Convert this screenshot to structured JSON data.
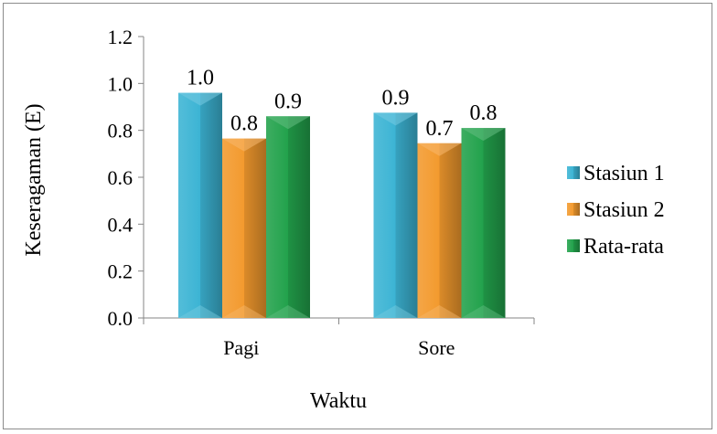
{
  "chart_data": {
    "type": "bar",
    "title": "",
    "xlabel": "Waktu",
    "ylabel": "Keseragaman (E)",
    "categories": [
      "Pagi",
      "Sore"
    ],
    "ylim": [
      0,
      1.2
    ],
    "yticks": [
      "0.0",
      "0.2",
      "0.4",
      "0.6",
      "0.8",
      "1.0",
      "1.2"
    ],
    "grid": false,
    "legend_position": "right",
    "series": [
      {
        "name": "Stasiun 1",
        "values": [
          0.96,
          0.875
        ],
        "labels": [
          "1.0",
          "0.9"
        ],
        "color": "#3cb4d4"
      },
      {
        "name": "Stasiun 2",
        "values": [
          0.765,
          0.745
        ],
        "labels": [
          "0.8",
          "0.7"
        ],
        "color": "#f39a2e"
      },
      {
        "name": "Rata-rata",
        "values": [
          0.86,
          0.81
        ],
        "labels": [
          "0.9",
          "0.8"
        ],
        "color": "#22a24c"
      }
    ]
  }
}
